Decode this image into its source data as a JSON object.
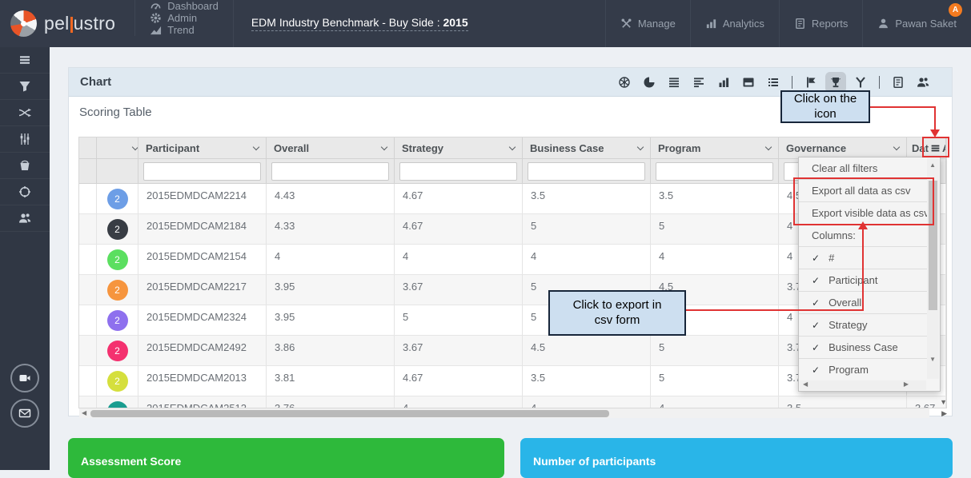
{
  "navbar": {
    "brand": {
      "pre": "pel",
      "post": "ustro"
    },
    "items": [
      {
        "label": "Dashboard",
        "icon": "dashboard"
      },
      {
        "label": "Admin",
        "icon": "gear"
      },
      {
        "label": "Trend",
        "icon": "trend"
      }
    ],
    "title_main": "EDM Industry Benchmark - Buy Side : ",
    "title_year": "2015",
    "right_items": [
      {
        "label": "Manage",
        "icon": "tools"
      },
      {
        "label": "Analytics",
        "icon": "analytics"
      },
      {
        "label": "Reports",
        "icon": "report"
      },
      {
        "label": "Pawan Saket",
        "icon": "user"
      }
    ],
    "notification_badge": "A",
    "badge_color": "#f47b20"
  },
  "sidebar": {
    "icons": [
      "menu",
      "filter",
      "shuffle",
      "sliders",
      "bucket",
      "target",
      "group"
    ],
    "bottom_icons": [
      "camera",
      "mail"
    ]
  },
  "chart_panel": {
    "title": "Chart",
    "toolbar_icons": [
      "donut-chart",
      "pie-chart",
      "align-justify",
      "align-left",
      "bar-chart",
      "image",
      "list",
      "divider",
      "flag",
      "trophy",
      "medal",
      "divider",
      "report",
      "group"
    ],
    "active_icon": "trophy"
  },
  "scoring_table": {
    "title": "Scoring Table",
    "columns": [
      "Participant",
      "Overall",
      "Strategy",
      "Business Case",
      "Program",
      "Governance"
    ],
    "last_column_parts": [
      "Dat",
      "A"
    ],
    "rows": [
      {
        "rank": "2",
        "color": "#6d9ee6",
        "participant": "2015EDMDCAM2214",
        "overall": "4.43",
        "strategy": "4.67",
        "business_case": "3.5",
        "program": "3.5",
        "governance": "4.5",
        "data_arch": ""
      },
      {
        "rank": "2",
        "color": "#383d44",
        "participant": "2015EDMDCAM2184",
        "overall": "4.33",
        "strategy": "4.67",
        "business_case": "5",
        "program": "5",
        "governance": "4",
        "data_arch": ""
      },
      {
        "rank": "2",
        "color": "#5bdf60",
        "participant": "2015EDMDCAM2154",
        "overall": "4",
        "strategy": "4",
        "business_case": "4",
        "program": "4",
        "governance": "4",
        "data_arch": ""
      },
      {
        "rank": "2",
        "color": "#f6953e",
        "participant": "2015EDMDCAM2217",
        "overall": "3.95",
        "strategy": "3.67",
        "business_case": "5",
        "program": "4.5",
        "governance": "3.7",
        "data_arch": ""
      },
      {
        "rank": "2",
        "color": "#8e70ee",
        "participant": "2015EDMDCAM2324",
        "overall": "3.95",
        "strategy": "5",
        "business_case": "5",
        "program": "",
        "governance": "4",
        "data_arch": ""
      },
      {
        "rank": "2",
        "color": "#f4316f",
        "participant": "2015EDMDCAM2492",
        "overall": "3.86",
        "strategy": "3.67",
        "business_case": "4.5",
        "program": "5",
        "governance": "3.7",
        "data_arch": ""
      },
      {
        "rank": "2",
        "color": "#d5df3d",
        "participant": "2015EDMDCAM2013",
        "overall": "3.81",
        "strategy": "4.67",
        "business_case": "3.5",
        "program": "5",
        "governance": "3.7",
        "data_arch": ""
      },
      {
        "rank": "2",
        "color": "#1a9d90",
        "participant": "2015EDMDCAM2512",
        "overall": "3.76",
        "strategy": "4",
        "business_case": "4",
        "program": "4",
        "governance": "3.5",
        "data_arch": "3.67"
      }
    ]
  },
  "column_menu": {
    "actions": [
      "Clear all filters",
      "Export all data as csv",
      "Export visible data as csv"
    ],
    "columns_label": "Columns:",
    "column_toggles": [
      {
        "label": "#",
        "checked": true
      },
      {
        "label": "Participant",
        "checked": true
      },
      {
        "label": "Overall",
        "checked": true
      },
      {
        "label": "Strategy",
        "checked": true
      },
      {
        "label": "Business Case",
        "checked": true
      },
      {
        "label": "Program",
        "checked": true
      }
    ]
  },
  "annotations": {
    "icon_callout": "Click on the icon",
    "export_callout": "Click to export in csv form",
    "accent_color": "#e03333",
    "callout_bg": "#cddff0"
  },
  "bottom_panels": [
    {
      "label": "Assessment Score",
      "color": "#2eb93b"
    },
    {
      "label": "Number of participants",
      "color": "#29b5e8"
    }
  ]
}
